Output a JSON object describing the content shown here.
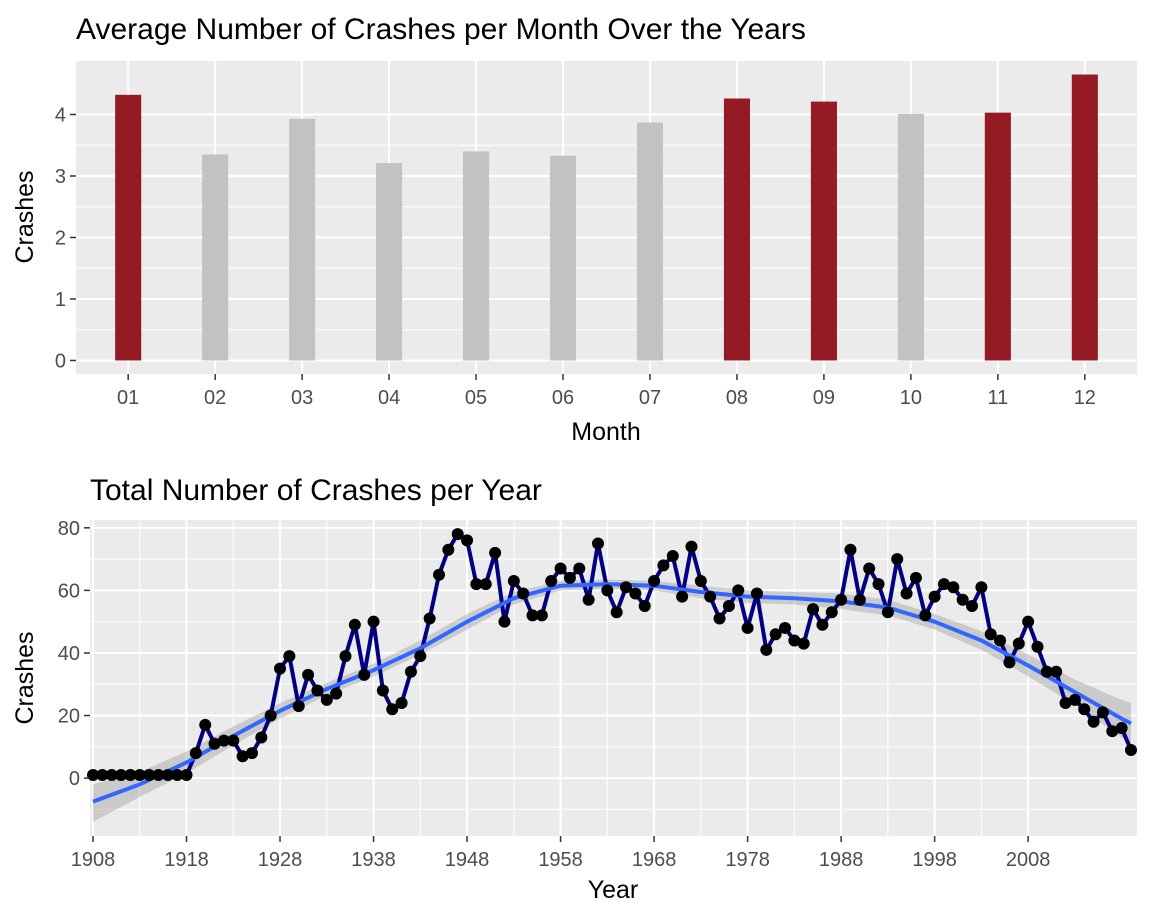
{
  "chart_data": [
    {
      "type": "bar",
      "title": "Average Number of Crashes per Month Over the Years",
      "xlabel": "Month",
      "ylabel": "Crashes",
      "categories": [
        "01",
        "02",
        "03",
        "04",
        "05",
        "06",
        "07",
        "08",
        "09",
        "10",
        "11",
        "12"
      ],
      "values": [
        4.32,
        3.35,
        3.93,
        3.21,
        3.4,
        3.33,
        3.87,
        4.26,
        4.21,
        4.01,
        4.03,
        4.65
      ],
      "highlighted": [
        true,
        false,
        false,
        false,
        false,
        false,
        false,
        true,
        true,
        false,
        true,
        true
      ],
      "highlight_color": "#941b24",
      "base_color": "#c2c2c2",
      "ylim": [
        -0.22,
        4.87
      ],
      "yticks": [
        0,
        1,
        2,
        3,
        4
      ],
      "grid": true
    },
    {
      "type": "line",
      "title": "Total Number of Crashes per Year",
      "xlabel": "Year",
      "ylabel": "Crashes",
      "x": [
        1908,
        1909,
        1910,
        1911,
        1912,
        1913,
        1914,
        1915,
        1916,
        1917,
        1918,
        1919,
        1920,
        1921,
        1922,
        1923,
        1924,
        1925,
        1926,
        1927,
        1928,
        1929,
        1930,
        1931,
        1932,
        1933,
        1934,
        1935,
        1936,
        1937,
        1938,
        1939,
        1940,
        1941,
        1942,
        1943,
        1944,
        1945,
        1946,
        1947,
        1948,
        1949,
        1950,
        1951,
        1952,
        1953,
        1954,
        1955,
        1956,
        1957,
        1958,
        1959,
        1960,
        1961,
        1962,
        1963,
        1964,
        1965,
        1966,
        1967,
        1968,
        1969,
        1970,
        1971,
        1972,
        1973,
        1974,
        1975,
        1976,
        1977,
        1978,
        1979,
        1980,
        1981,
        1982,
        1983,
        1984,
        1985,
        1986,
        1987,
        1988,
        1989,
        1990,
        1991,
        1992,
        1993,
        1994,
        1995,
        1996,
        1997,
        1998,
        1999,
        2000,
        2001,
        2002,
        2003,
        2004,
        2005,
        2006,
        2007,
        2008,
        2009,
        2010,
        2011,
        2012,
        2013,
        2014,
        2015,
        2016,
        2017,
        2018,
        2019
      ],
      "y": [
        1,
        1,
        1,
        1,
        1,
        1,
        1,
        1,
        1,
        1,
        1,
        8,
        17,
        11,
        12,
        12,
        7,
        8,
        13,
        20,
        35,
        39,
        23,
        33,
        28,
        25,
        27,
        39,
        49,
        33,
        50,
        28,
        22,
        24,
        34,
        39,
        51,
        65,
        73,
        78,
        76,
        62,
        62,
        72,
        50,
        63,
        59,
        52,
        52,
        63,
        67,
        64,
        67,
        57,
        75,
        60,
        53,
        61,
        59,
        55,
        63,
        68,
        71,
        58,
        74,
        63,
        58,
        51,
        55,
        60,
        48,
        59,
        41,
        46,
        48,
        44,
        43,
        54,
        49,
        53,
        57,
        73,
        57,
        67,
        62,
        53,
        70,
        59,
        64,
        52,
        58,
        62,
        61,
        57,
        55,
        61,
        46,
        44,
        37,
        43,
        50,
        42,
        34,
        34,
        24,
        25,
        22,
        18,
        21,
        15,
        16,
        9
      ],
      "smooth": {
        "x": [
          1908,
          1913,
          1918,
          1923,
          1928,
          1933,
          1938,
          1943,
          1948,
          1953,
          1958,
          1963,
          1968,
          1973,
          1978,
          1983,
          1988,
          1993,
          1998,
          2003,
          2008,
          2013,
          2018,
          2019
        ],
        "y": [
          -7.5,
          -2,
          5,
          13.5,
          21.5,
          28.5,
          34.5,
          41.5,
          50,
          57.5,
          61.5,
          62,
          61.5,
          59.5,
          58,
          57.5,
          56.5,
          54.5,
          50,
          44,
          36,
          27.5,
          19,
          17.5
        ],
        "se_upper": [
          -2,
          2,
          8.5,
          16.5,
          24,
          30.5,
          36.5,
          44,
          52.5,
          59.5,
          63,
          63.5,
          63,
          61.5,
          60,
          59.5,
          59,
          57,
          52.5,
          47,
          39.5,
          31.5,
          25,
          24
        ],
        "se_lower": [
          -14,
          -6,
          1.5,
          10.5,
          19,
          26.5,
          32.5,
          39.5,
          47.5,
          55.5,
          60,
          60.5,
          60,
          57.5,
          56,
          55.5,
          54,
          52,
          47.5,
          41,
          32.5,
          23.5,
          13,
          11
        ]
      },
      "line_color": "#000080",
      "point_color": "#000000",
      "smooth_color": "#3366ff",
      "ribbon_color": "#999999",
      "xticks": [
        1908,
        1918,
        1928,
        1938,
        1948,
        1958,
        1968,
        1978,
        1988,
        1998,
        2008
      ],
      "yticks": [
        0,
        20,
        40,
        60,
        80
      ],
      "xlim": [
        1908,
        2019
      ],
      "ylim": [
        -18.5,
        82.5
      ],
      "grid": true
    }
  ]
}
